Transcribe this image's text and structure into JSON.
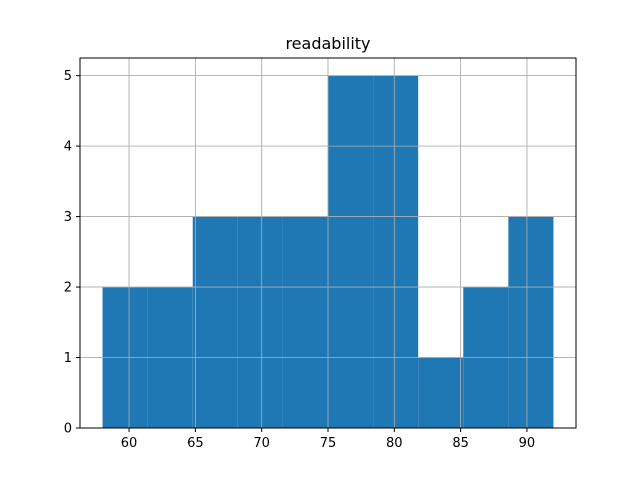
{
  "chart_data": {
    "type": "bar",
    "title": "readability",
    "xlabel": "",
    "ylabel": "",
    "xlim": [
      56.3,
      93.7
    ],
    "ylim": [
      0,
      5.25
    ],
    "grid": true,
    "bar_color": "#1f77b4",
    "grid_color": "#b0b0b0",
    "bins": [
      {
        "x0": 58.0,
        "x1": 61.4,
        "count": 2
      },
      {
        "x0": 61.4,
        "x1": 64.8,
        "count": 2
      },
      {
        "x0": 64.8,
        "x1": 68.2,
        "count": 3
      },
      {
        "x0": 68.2,
        "x1": 71.6,
        "count": 3
      },
      {
        "x0": 71.6,
        "x1": 75.0,
        "count": 3
      },
      {
        "x0": 75.0,
        "x1": 78.4,
        "count": 5
      },
      {
        "x0": 78.4,
        "x1": 81.8,
        "count": 5
      },
      {
        "x0": 81.8,
        "x1": 85.2,
        "count": 1
      },
      {
        "x0": 85.2,
        "x1": 88.6,
        "count": 2
      },
      {
        "x0": 88.6,
        "x1": 92.0,
        "count": 3
      }
    ],
    "xticks": [
      60,
      65,
      70,
      75,
      80,
      85,
      90
    ],
    "yticks": [
      0,
      1,
      2,
      3,
      4,
      5
    ]
  }
}
